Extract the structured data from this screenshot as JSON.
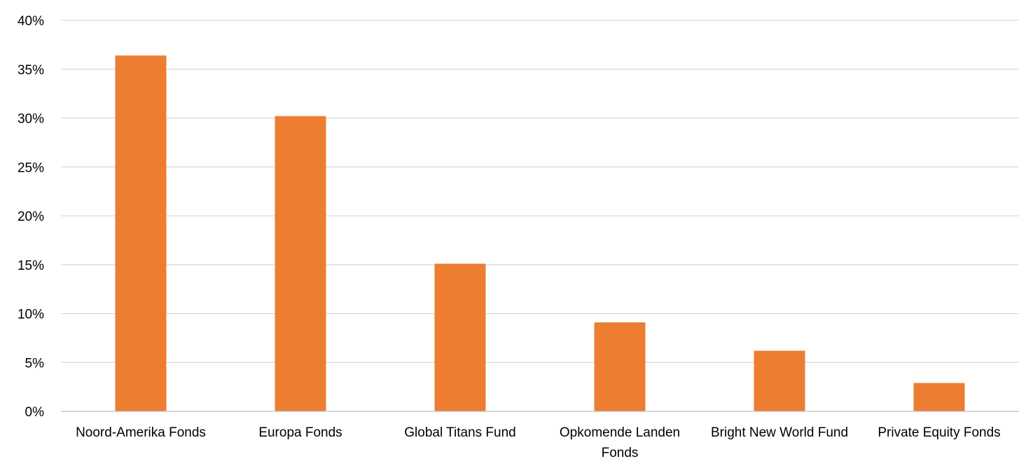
{
  "chart_data": {
    "type": "bar",
    "title": "",
    "xlabel": "",
    "ylabel": "",
    "categories": [
      [
        "Noord-Amerika Fonds"
      ],
      [
        "Europa Fonds"
      ],
      [
        "Global Titans Fund"
      ],
      [
        "Opkomende Landen",
        "Fonds"
      ],
      [
        "Bright New World Fund"
      ],
      [
        "Private Equity Fonds"
      ]
    ],
    "values": [
      36.4,
      30.2,
      15.1,
      9.1,
      6.2,
      2.9
    ],
    "ylim": [
      0,
      40
    ],
    "yticks": [
      0,
      5,
      10,
      15,
      20,
      25,
      30,
      35,
      40
    ],
    "ytick_labels": [
      "0%",
      "5%",
      "10%",
      "15%",
      "20%",
      "25%",
      "30%",
      "35%",
      "40%"
    ],
    "grid": true,
    "legend": "none",
    "colors": {
      "bar": "#ED7D31",
      "grid": "#D9D9D9",
      "axis": "#BFBFBF",
      "text": "#000000"
    }
  }
}
